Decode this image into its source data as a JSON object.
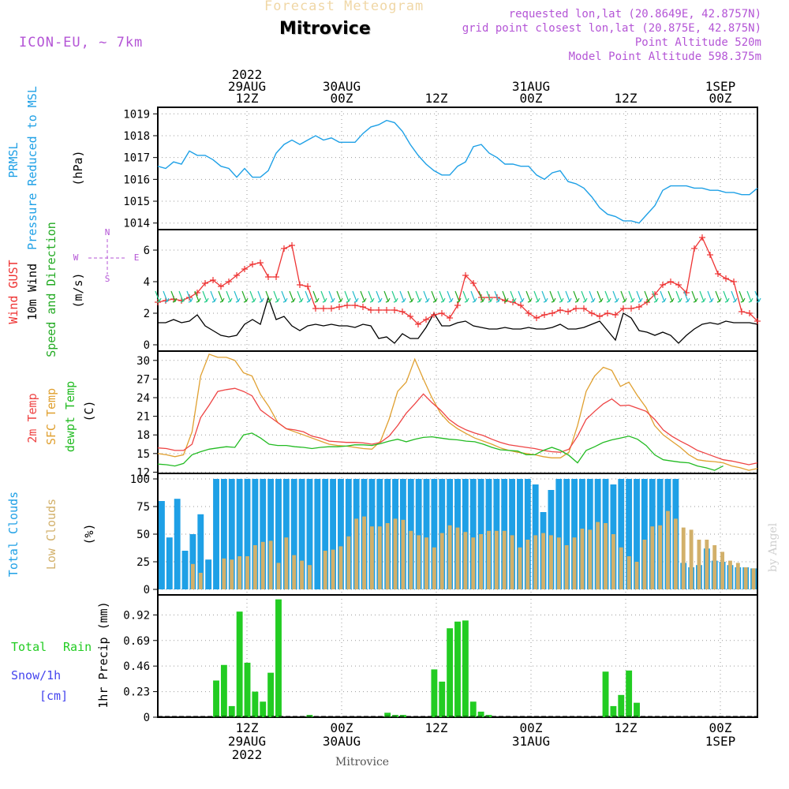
{
  "header": {
    "faint_title": "Forecast Meteogram",
    "station": "Mitrovice",
    "model": "ICON-EU, ~ 7km",
    "requested": "requested lon,lat (20.8649E, 42.8757N)",
    "gridpoint": "grid point closest lon,lat (20.875E, 42.875N)",
    "point_alt": "Point Altitude 520m",
    "model_alt": "Model Point Altitude 598.375m"
  },
  "footer": {
    "label": "Mitrovice",
    "watermark": "by Angel"
  },
  "colors": {
    "pressure": "#1ea0e6",
    "gust": "#ee3333",
    "wind": "#000000",
    "wind_dir": "#22aa22",
    "temp2m": "#ee4444",
    "sfc": "#e0a030",
    "dewpt": "#22bb22",
    "total_clouds": "#1ea0e6",
    "low_clouds": "#d2b06a",
    "rain": "#22cc22",
    "snow": "#4444ee",
    "compass": "#b455d6",
    "grid": "#999999"
  },
  "chart_data": {
    "type": "meteogram",
    "time_axis": {
      "start_hour": 0,
      "end_hour": 76,
      "top_ticks": [
        {
          "hour": 11.3,
          "lines": [
            "2022",
            "29AUG",
            "12Z"
          ]
        },
        {
          "hour": 23.3,
          "lines": [
            "30AUG",
            "00Z"
          ]
        },
        {
          "hour": 35.3,
          "lines": [
            "12Z"
          ]
        },
        {
          "hour": 47.3,
          "lines": [
            "31AUG",
            "00Z"
          ]
        },
        {
          "hour": 59.3,
          "lines": [
            "12Z"
          ]
        },
        {
          "hour": 71.3,
          "lines": [
            "1SEP",
            "00Z"
          ]
        }
      ],
      "bottom_ticks": [
        {
          "hour": 11.3,
          "lines": [
            "12Z",
            "29AUG",
            "2022"
          ]
        },
        {
          "hour": 23.3,
          "lines": [
            "00Z",
            "30AUG"
          ]
        },
        {
          "hour": 35.3,
          "lines": [
            "12Z"
          ]
        },
        {
          "hour": 47.3,
          "lines": [
            "00Z",
            "31AUG"
          ]
        },
        {
          "hour": 59.3,
          "lines": [
            "12Z"
          ]
        },
        {
          "hour": 71.3,
          "lines": [
            "00Z",
            "1SEP"
          ]
        }
      ]
    },
    "pressure": {
      "labels": [
        "PRMSL",
        "Pressure Reduced to MSL"
      ],
      "unit": "(hPa)",
      "ylim": [
        1013.7,
        1019.3
      ],
      "yticks": [
        1014,
        1015,
        1016,
        1017,
        1018,
        1019
      ],
      "hours": [
        0,
        1,
        2,
        3,
        4,
        5,
        6,
        7,
        8,
        9,
        10,
        11,
        12,
        13,
        14,
        15,
        16,
        17,
        18,
        19,
        20,
        21,
        22,
        23,
        24,
        25,
        26,
        27,
        28,
        29,
        30,
        31,
        32,
        33,
        34,
        35,
        36,
        37,
        38,
        39,
        40,
        41,
        42,
        43,
        44,
        45,
        46,
        47,
        48,
        49,
        50,
        51,
        52,
        53,
        54,
        55,
        56,
        57,
        58,
        59,
        60,
        61,
        62,
        63,
        64,
        65,
        66,
        67,
        68,
        69,
        70,
        71,
        72,
        73,
        74,
        75,
        76
      ],
      "values": [
        1016.6,
        1016.5,
        1016.8,
        1016.7,
        1017.3,
        1017.1,
        1017.1,
        1016.9,
        1016.6,
        1016.5,
        1016.1,
        1016.5,
        1016.1,
        1016.1,
        1016.4,
        1017.2,
        1017.6,
        1017.8,
        1017.6,
        1017.8,
        1018.0,
        1017.8,
        1017.9,
        1017.7,
        1017.7,
        1017.7,
        1018.1,
        1018.4,
        1018.5,
        1018.7,
        1018.6,
        1018.2,
        1017.6,
        1017.1,
        1016.7,
        1016.4,
        1016.2,
        1016.2,
        1016.6,
        1016.8,
        1017.5,
        1017.6,
        1017.2,
        1017.0,
        1016.7,
        1016.7,
        1016.6,
        1016.6,
        1016.2,
        1016.0,
        1016.3,
        1016.4,
        1015.9,
        1015.8,
        1015.6,
        1015.2,
        1014.7,
        1014.4,
        1014.3,
        1014.1,
        1014.1,
        1014.0,
        1014.4,
        1014.8,
        1015.5,
        1015.7,
        1015.7,
        1015.7,
        1015.6,
        1015.6,
        1015.5,
        1015.5,
        1015.4,
        1015.4,
        1015.3,
        1015.3,
        1015.6
      ]
    },
    "wind": {
      "labels": [
        "Wind GUST",
        "10m Wind",
        "Speed and Direction"
      ],
      "unit": "(m/s)",
      "ylim": [
        -0.4,
        7.3
      ],
      "yticks": [
        0,
        2,
        4,
        6
      ],
      "compass": {
        "n": "N",
        "s": "S",
        "w": "W",
        "e": "E"
      },
      "hours": [
        0,
        1,
        2,
        3,
        4,
        5,
        6,
        7,
        8,
        9,
        10,
        11,
        12,
        13,
        14,
        15,
        16,
        17,
        18,
        19,
        20,
        21,
        22,
        23,
        24,
        25,
        26,
        27,
        28,
        29,
        30,
        31,
        32,
        33,
        34,
        35,
        36,
        37,
        38,
        39,
        40,
        41,
        42,
        43,
        44,
        45,
        46,
        47,
        48,
        49,
        50,
        51,
        52,
        53,
        54,
        55,
        56,
        57,
        58,
        59,
        60,
        61,
        62,
        63,
        64,
        65,
        66,
        67,
        68,
        69,
        70,
        71,
        72,
        73,
        74,
        75,
        76
      ],
      "gust": [
        2.7,
        2.8,
        2.9,
        2.8,
        3.0,
        3.3,
        3.9,
        4.1,
        3.7,
        4.0,
        4.4,
        4.8,
        5.1,
        5.2,
        4.3,
        4.3,
        6.1,
        6.3,
        3.8,
        3.7,
        2.3,
        2.3,
        2.3,
        2.4,
        2.5,
        2.5,
        2.4,
        2.2,
        2.2,
        2.2,
        2.2,
        2.1,
        1.8,
        1.3,
        1.6,
        1.9,
        2.0,
        1.7,
        2.5,
        4.4,
        3.9,
        3.0,
        3.0,
        3.0,
        2.8,
        2.7,
        2.5,
        2.0,
        1.7,
        1.9,
        2.0,
        2.2,
        2.1,
        2.3,
        2.3,
        2.0,
        1.8,
        2.0,
        1.9,
        2.3,
        2.3,
        2.4,
        2.7,
        3.2,
        3.8,
        4.0,
        3.8,
        3.3,
        6.1,
        6.8,
        5.7,
        4.5,
        4.2,
        4.0,
        2.1,
        2.0,
        1.5
      ],
      "speed": [
        1.4,
        1.4,
        1.6,
        1.4,
        1.5,
        1.9,
        1.2,
        0.9,
        0.6,
        0.5,
        0.6,
        1.3,
        1.6,
        1.3,
        3.0,
        1.6,
        1.8,
        1.2,
        0.9,
        1.2,
        1.3,
        1.2,
        1.3,
        1.2,
        1.2,
        1.1,
        1.3,
        1.2,
        0.4,
        0.5,
        0.1,
        0.7,
        0.4,
        0.4,
        1.1,
        2.0,
        1.2,
        1.2,
        1.4,
        1.5,
        1.2,
        1.1,
        1.0,
        1.0,
        1.1,
        1.0,
        1.0,
        1.1,
        1.0,
        1.0,
        1.1,
        1.3,
        1.0,
        1.0,
        1.1,
        1.3,
        1.5,
        0.9,
        0.3,
        2.0,
        1.7,
        0.9,
        0.8,
        0.6,
        0.8,
        0.6,
        0.1,
        0.6,
        1.0,
        1.3,
        1.4,
        1.3,
        1.5,
        1.4,
        1.4,
        1.4,
        1.3
      ]
    },
    "temperature": {
      "labels": [
        "2m Temp",
        "SFC Temp",
        "dewpt Temp"
      ],
      "unit": "(C)",
      "ylim": [
        11.8,
        31.5
      ],
      "yticks": [
        12,
        15,
        18,
        21,
        24,
        27,
        30
      ],
      "hours": [
        0,
        1,
        2,
        3,
        4,
        5,
        6,
        7,
        8,
        9,
        10,
        11,
        12,
        13,
        14,
        15,
        16,
        17,
        18,
        19,
        20,
        21,
        22,
        23,
        24,
        25,
        26,
        27,
        28,
        29,
        30,
        31,
        32,
        33,
        34,
        35,
        36,
        37,
        38,
        39,
        40,
        41,
        42,
        43,
        44,
        45,
        46,
        47,
        48,
        49,
        50,
        51,
        52,
        53,
        54,
        55,
        56,
        57,
        58,
        59,
        60,
        61,
        62,
        63,
        64,
        65,
        66,
        67,
        68,
        69,
        70,
        71,
        72,
        73,
        74,
        75,
        76
      ],
      "t2m": [
        15.9,
        15.8,
        15.5,
        15.5,
        16.5,
        20.8,
        22.8,
        25.0,
        25.3,
        25.5,
        25.0,
        24.3,
        22.0,
        21.0,
        20.0,
        19.0,
        18.8,
        18.5,
        17.8,
        17.5,
        17.0,
        16.9,
        16.8,
        16.8,
        16.7,
        16.5,
        16.8,
        17.8,
        19.5,
        21.5,
        23.0,
        24.6,
        23.2,
        22.0,
        20.5,
        19.5,
        18.8,
        18.3,
        17.9,
        17.3,
        16.8,
        16.4,
        16.2,
        16.0,
        15.8,
        15.5,
        15.3,
        15.2,
        15.7,
        17.8,
        20.5,
        21.8,
        23.0,
        23.8,
        22.7,
        22.8,
        22.3,
        21.8,
        20.5,
        18.8,
        17.8,
        17.0,
        16.3,
        15.5,
        15.0,
        14.5,
        14.0,
        13.8,
        13.5,
        13.2,
        13.5
      ],
      "sfc": [
        15.0,
        14.8,
        14.5,
        14.8,
        18.5,
        27.5,
        31.0,
        30.5,
        30.5,
        30.0,
        28.0,
        27.5,
        24.5,
        22.5,
        20.0,
        19.0,
        18.5,
        18.0,
        17.5,
        17.0,
        16.5,
        16.3,
        16.2,
        16.0,
        15.8,
        15.7,
        17.0,
        20.5,
        25.0,
        26.5,
        30.2,
        27.0,
        24.0,
        21.5,
        20.0,
        19.0,
        18.2,
        17.5,
        17.0,
        16.5,
        15.9,
        15.5,
        15.2,
        15.0,
        14.8,
        14.5,
        14.3,
        14.3,
        15.2,
        19.5,
        25.0,
        27.5,
        28.9,
        28.4,
        25.8,
        26.5,
        24.3,
        22.4,
        19.5,
        18.0,
        17.0,
        16.0,
        14.8,
        14.0,
        13.8,
        13.7,
        13.5,
        13.0,
        12.7,
        12.3,
        12.6
      ],
      "dewpt": [
        13.3,
        13.2,
        13.0,
        13.4,
        14.8,
        15.3,
        15.7,
        15.9,
        16.1,
        16.0,
        18.0,
        18.3,
        17.5,
        16.5,
        16.3,
        16.3,
        16.1,
        16.0,
        15.8,
        16.0,
        16.1,
        16.1,
        16.2,
        16.4,
        16.4,
        16.3,
        16.6,
        17.0,
        17.3,
        16.9,
        17.3,
        17.6,
        17.7,
        17.5,
        17.3,
        17.2,
        17.0,
        16.9,
        16.5,
        16.0,
        15.6,
        15.5,
        15.4,
        14.8,
        14.8,
        15.5,
        16.0,
        15.5,
        14.7,
        13.5,
        15.5,
        16.1,
        16.8,
        17.2,
        17.5,
        17.8,
        17.3,
        16.3,
        14.8,
        14.0,
        13.8,
        13.6,
        13.5,
        13.0,
        12.7,
        12.3,
        13.0
      ],
      "t_hours": [
        0,
        1,
        2,
        3,
        4,
        5,
        6,
        7,
        8,
        9,
        10,
        11,
        12,
        13,
        14,
        15,
        16,
        17,
        18,
        19,
        20,
        21,
        22,
        23,
        24,
        25,
        26,
        27,
        28,
        29,
        30,
        31,
        32,
        33,
        34,
        35,
        36,
        37,
        38,
        39,
        40,
        41,
        42,
        43,
        44,
        45,
        46,
        47,
        48,
        49,
        50,
        51,
        52,
        53,
        54,
        55,
        56,
        57,
        58,
        59,
        60,
        61,
        62,
        63,
        64,
        65,
        66,
        67,
        68,
        69,
        70
      ]
    },
    "clouds": {
      "labels": [
        "Total Clouds",
        "Low Clouds"
      ],
      "unit": "(%)",
      "ylim": [
        -5,
        105
      ],
      "yticks": [
        0,
        25,
        50,
        75,
        100
      ],
      "hours": [
        0,
        1,
        2,
        3,
        4,
        5,
        6,
        7,
        8,
        9,
        10,
        11,
        12,
        13,
        14,
        15,
        16,
        17,
        18,
        19,
        20,
        21,
        22,
        23,
        24,
        25,
        26,
        27,
        28,
        29,
        30,
        31,
        32,
        33,
        34,
        35,
        36,
        37,
        38,
        39,
        40,
        41,
        42,
        43,
        44,
        45,
        46,
        47,
        48,
        49,
        50,
        51,
        52,
        53,
        54,
        55,
        56,
        57,
        58,
        59,
        60,
        61,
        62,
        63,
        64,
        65,
        66,
        67,
        68,
        69,
        70,
        71,
        72,
        73,
        74,
        75,
        76
      ],
      "total": [
        80,
        47,
        82,
        35,
        50,
        68,
        27,
        100,
        100,
        100,
        100,
        100,
        100,
        100,
        100,
        100,
        100,
        100,
        100,
        100,
        100,
        100,
        100,
        100,
        100,
        100,
        100,
        100,
        100,
        100,
        100,
        100,
        100,
        100,
        100,
        100,
        100,
        100,
        100,
        100,
        100,
        100,
        100,
        100,
        100,
        100,
        100,
        100,
        95,
        70,
        90,
        100,
        100,
        100,
        100,
        100,
        100,
        100,
        95,
        100,
        100,
        100,
        100,
        100,
        100,
        100,
        100,
        24,
        20,
        22,
        37,
        26,
        25,
        22,
        20,
        20,
        19
      ],
      "low": [
        0,
        0,
        0,
        0,
        23,
        15,
        0,
        0,
        28,
        27,
        30,
        30,
        40,
        43,
        44,
        24,
        47,
        31,
        26,
        22,
        0,
        35,
        36,
        39,
        48,
        64,
        66,
        57,
        57,
        60,
        64,
        63,
        53,
        49,
        47,
        38,
        51,
        58,
        56,
        52,
        47,
        50,
        53,
        53,
        53,
        49,
        38,
        45,
        49,
        51,
        49,
        47,
        40,
        47,
        55,
        54,
        61,
        60,
        50,
        38,
        30,
        25,
        45,
        57,
        58,
        71,
        64,
        56,
        54,
        45,
        45,
        40,
        34,
        26,
        24,
        20,
        19
      ]
    },
    "precip": {
      "labels": [
        "Total",
        "Rain",
        "Snow/1h",
        "[cm]"
      ],
      "unit": "1hr Precip (mm)",
      "ylim": [
        0,
        1.1
      ],
      "yticks": [
        0,
        0.23,
        0.46,
        0.69,
        0.92
      ],
      "hours": [
        7,
        8,
        9,
        10,
        11,
        12,
        13,
        14,
        15,
        16,
        19,
        29,
        30,
        31,
        32,
        35,
        36,
        37,
        38,
        39,
        40,
        41,
        42,
        57,
        58,
        59,
        60,
        61,
        62
      ],
      "values": [
        0.33,
        0.47,
        0.1,
        0.95,
        0.49,
        0.23,
        0.14,
        0.4,
        1.06,
        0.0,
        0.02,
        0.04,
        0.02,
        0.02,
        0.0,
        0.43,
        0.32,
        0.8,
        0.86,
        0.87,
        0.14,
        0.05,
        0.02,
        0.41,
        0.1,
        0.2,
        0.42,
        0.13,
        0.0
      ]
    }
  }
}
